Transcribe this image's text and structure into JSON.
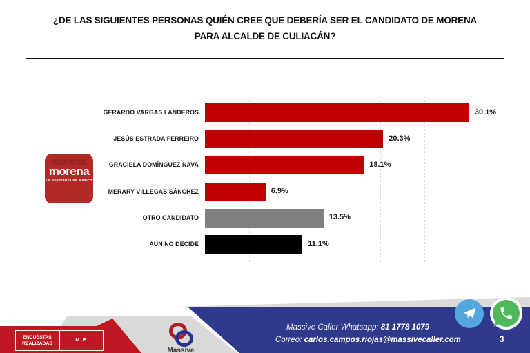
{
  "title": {
    "line1": "¿DE LAS SIGUIENTES PERSONAS QUIÉN CREE QUE DEBERÍA SER EL CANDIDATO DE MORENA",
    "line2": "PARA ALCALDE DE CULIACÁN?"
  },
  "chart_data": {
    "type": "bar",
    "orientation": "horizontal",
    "categories": [
      "GERARDO VARGAS LANDEROS",
      "JESÚS ESTRADA FERREIRO",
      "GRACIELA DOMÍNGUEZ NAVA",
      "MERARY VILLEGAS SÁNCHEZ",
      "OTRO CANDIDATO",
      "AÚN NO DECIDE"
    ],
    "values": [
      30.1,
      20.3,
      18.1,
      6.9,
      13.5,
      11.1
    ],
    "value_labels": [
      "30.1%",
      "20.3%",
      "18.1%",
      "6.9%",
      "13.5%",
      "11.1%"
    ],
    "bar_colors": [
      "#C00000",
      "#C00000",
      "#C00000",
      "#C00000",
      "#808080",
      "#000000"
    ],
    "xlim": [
      0,
      35
    ],
    "gridline_step_pct": 5,
    "grid": "vertical-dotted",
    "legend": "none",
    "title": "",
    "xlabel": "",
    "ylabel": ""
  },
  "morena_logo": {
    "wordmark": "morena",
    "tagline": "La esperanza de México",
    "brand_color": "#B02A28"
  },
  "footer": {
    "whatsapp_label": "Massive Caller Whatsapp:",
    "whatsapp_number": "81 1778 1079",
    "email_label": "Correo:",
    "email": "carlos.campos.riojas@massivecaller.com",
    "page_number": "3",
    "encuestas_line1": "ENCUESTAS",
    "encuestas_line2": "REALIZADAS",
    "me_box": "M. E.",
    "massive_brand": "Massive",
    "colors": {
      "navy_band": "#2F3A8C",
      "red_banner": "#C01822",
      "gray_band": "#D9D9D9",
      "telegram_blue": "#56A6DE",
      "whatsapp_green": "#4FB85C"
    }
  }
}
